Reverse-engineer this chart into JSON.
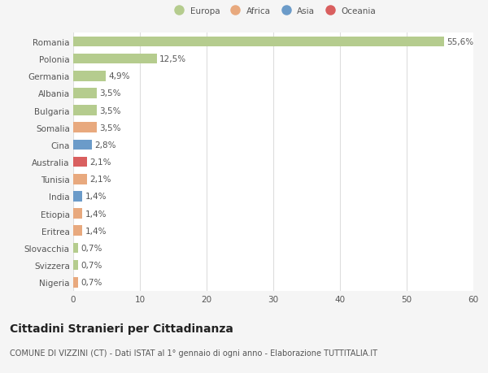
{
  "countries": [
    "Romania",
    "Polonia",
    "Germania",
    "Albania",
    "Bulgaria",
    "Somalia",
    "Cina",
    "Australia",
    "Tunisia",
    "India",
    "Etiopia",
    "Eritrea",
    "Slovacchia",
    "Svizzera",
    "Nigeria"
  ],
  "values": [
    55.6,
    12.5,
    4.9,
    3.5,
    3.5,
    3.5,
    2.8,
    2.1,
    2.1,
    1.4,
    1.4,
    1.4,
    0.7,
    0.7,
    0.7
  ],
  "labels": [
    "55,6%",
    "12,5%",
    "4,9%",
    "3,5%",
    "3,5%",
    "3,5%",
    "2,8%",
    "2,1%",
    "2,1%",
    "1,4%",
    "1,4%",
    "1,4%",
    "0,7%",
    "0,7%",
    "0,7%"
  ],
  "colors": [
    "#b5cc8e",
    "#b5cc8e",
    "#b5cc8e",
    "#b5cc8e",
    "#b5cc8e",
    "#e8a97e",
    "#6b9bc9",
    "#d95f5f",
    "#e8a97e",
    "#6b9bc9",
    "#e8a97e",
    "#e8a97e",
    "#b5cc8e",
    "#b5cc8e",
    "#e8a97e"
  ],
  "legend_labels": [
    "Europa",
    "Africa",
    "Asia",
    "Oceania"
  ],
  "legend_colors": [
    "#b5cc8e",
    "#e8a97e",
    "#6b9bc9",
    "#d95f5f"
  ],
  "xlim": [
    0,
    60
  ],
  "xticks": [
    0,
    10,
    20,
    30,
    40,
    50,
    60
  ],
  "title": "Cittadini Stranieri per Cittadinanza",
  "subtitle": "COMUNE DI VIZZINI (CT) - Dati ISTAT al 1° gennaio di ogni anno - Elaborazione TUTTITALIA.IT",
  "bg_color": "#f5f5f5",
  "bar_bg_color": "#ffffff",
  "grid_color": "#dddddd",
  "bar_height": 0.6,
  "label_fontsize": 7.5,
  "tick_fontsize": 7.5,
  "title_fontsize": 10,
  "subtitle_fontsize": 7
}
